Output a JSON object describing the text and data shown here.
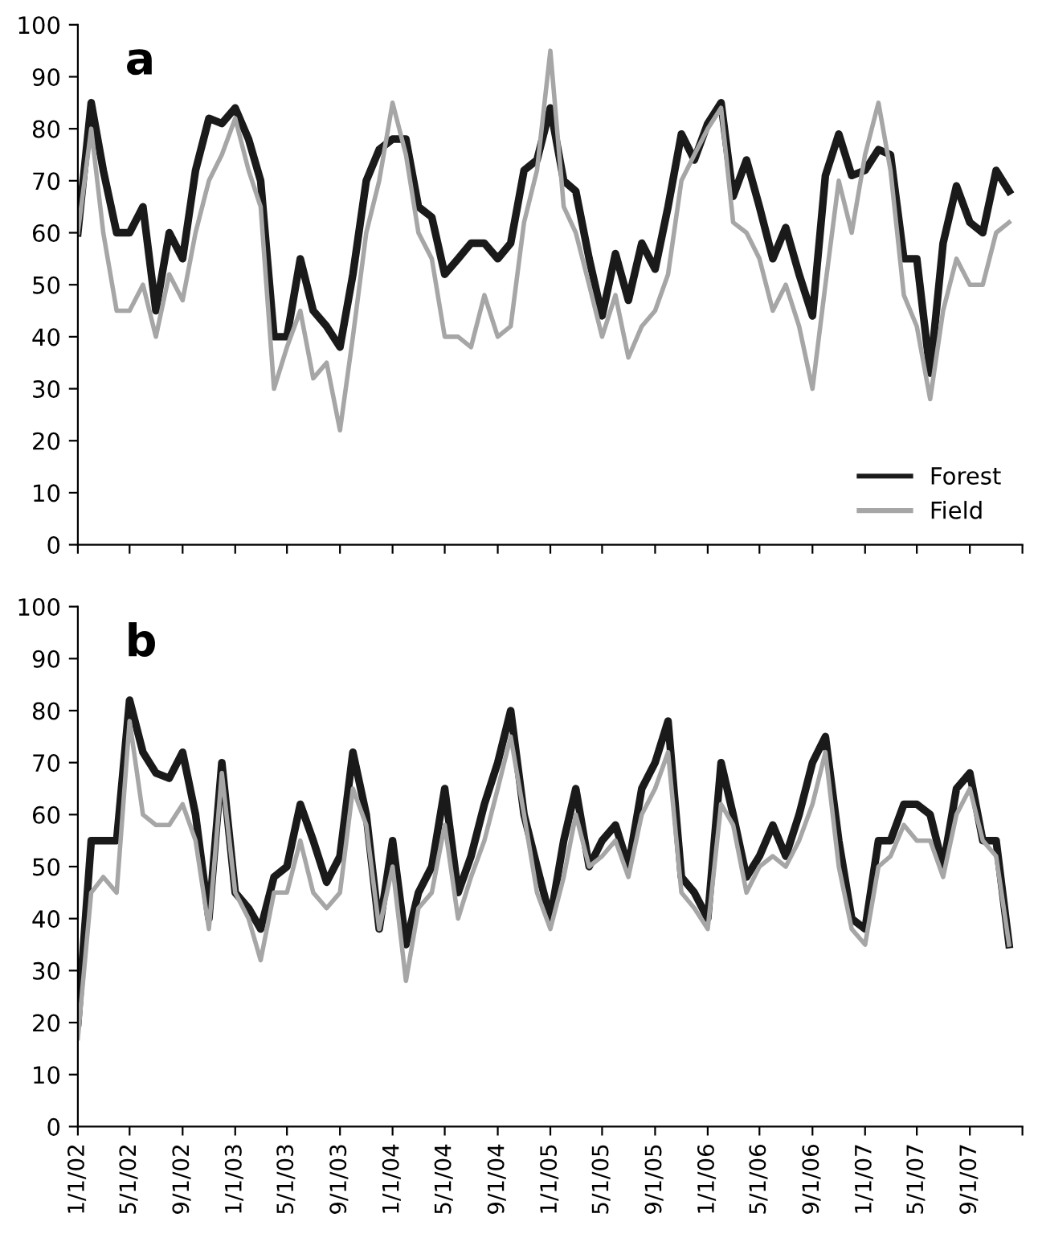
{
  "chart_data": [
    {
      "type": "line",
      "title": "a",
      "tick_labels": "y",
      "legend": "bottom right",
      "grid": false,
      "x": [
        "2002-01",
        "2002-02",
        "2002-03",
        "2002-04",
        "2002-05",
        "2002-06",
        "2002-07",
        "2002-08",
        "2002-09",
        "2002-10",
        "2002-11",
        "2002-12",
        "2003-01",
        "2003-02",
        "2003-03",
        "2003-04",
        "2003-05",
        "2003-06",
        "2003-07",
        "2003-08",
        "2003-09",
        "2003-10",
        "2003-11",
        "2003-12",
        "2004-01",
        "2004-02",
        "2004-03",
        "2004-04",
        "2004-05",
        "2004-06",
        "2004-07",
        "2004-08",
        "2004-09",
        "2004-10",
        "2004-11",
        "2004-12",
        "2005-01",
        "2005-02",
        "2005-03",
        "2005-04",
        "2005-05",
        "2005-06",
        "2005-07",
        "2005-08",
        "2005-09",
        "2005-10",
        "2005-11",
        "2005-12",
        "2006-01",
        "2006-02",
        "2006-03",
        "2006-04",
        "2006-05",
        "2006-06",
        "2006-07",
        "2006-08",
        "2006-09",
        "2006-10",
        "2006-11",
        "2006-12",
        "2007-01",
        "2007-02",
        "2007-03",
        "2007-04",
        "2007-05",
        "2007-06",
        "2007-07",
        "2007-08",
        "2007-09",
        "2007-10",
        "2007-11",
        "2007-12"
      ],
      "xlim": [
        "2002-01-01",
        "2008-01-01"
      ],
      "ylim": [
        0,
        100
      ],
      "yticks": [
        0,
        10,
        20,
        30,
        40,
        50,
        60,
        70,
        80,
        90,
        100
      ],
      "xticks": [
        {
          "value": "2002-01-01",
          "label": null
        },
        {
          "value": "2002-05-01",
          "label": null
        },
        {
          "value": "2002-09-01",
          "label": null
        },
        {
          "value": "2003-01-01",
          "label": null
        },
        {
          "value": "2003-05-01",
          "label": null
        },
        {
          "value": "2003-09-01",
          "label": null
        },
        {
          "value": "2004-01-01",
          "label": null
        },
        {
          "value": "2004-05-01",
          "label": null
        },
        {
          "value": "2004-09-01",
          "label": null
        },
        {
          "value": "2005-01-01",
          "label": null
        },
        {
          "value": "2005-05-01",
          "label": null
        },
        {
          "value": "2005-09-01",
          "label": null
        },
        {
          "value": "2006-01-01",
          "label": null
        },
        {
          "value": "2006-05-01",
          "label": null
        },
        {
          "value": "2006-09-01",
          "label": null
        },
        {
          "value": "2007-01-01",
          "label": null
        },
        {
          "value": "2007-05-01",
          "label": null
        },
        {
          "value": "2007-09-01",
          "label": null
        },
        {
          "value": "2008-01-01",
          "label": null
        }
      ],
      "series": [
        {
          "name": "Forest",
          "color": "#1a1a1a",
          "values": [
            60,
            85,
            72,
            60,
            60,
            65,
            45,
            60,
            55,
            72,
            82,
            81,
            84,
            78,
            70,
            40,
            40,
            55,
            45,
            42,
            38,
            52,
            70,
            76,
            78,
            78,
            65,
            63,
            52,
            55,
            58,
            58,
            55,
            58,
            72,
            74,
            84,
            70,
            68,
            55,
            44,
            56,
            47,
            58,
            53,
            65,
            79,
            74,
            81,
            85,
            67,
            74,
            65,
            55,
            61,
            52,
            44,
            71,
            79,
            71,
            72,
            76,
            75,
            55,
            55,
            33,
            58,
            69,
            62,
            60,
            72,
            68
          ]
        },
        {
          "name": "Field",
          "color": "#a6a6a6",
          "values": [
            60,
            80,
            60,
            45,
            45,
            50,
            40,
            52,
            47,
            60,
            70,
            75,
            82,
            72,
            65,
            30,
            38,
            45,
            32,
            35,
            22,
            40,
            60,
            70,
            85,
            75,
            60,
            55,
            40,
            40,
            38,
            48,
            40,
            42,
            62,
            72,
            95,
            65,
            60,
            50,
            40,
            48,
            36,
            42,
            45,
            52,
            70,
            75,
            80,
            84,
            62,
            60,
            55,
            45,
            50,
            42,
            30,
            50,
            70,
            60,
            75,
            85,
            72,
            48,
            42,
            28,
            45,
            55,
            50,
            50,
            60,
            62
          ]
        }
      ]
    },
    {
      "type": "line",
      "title": "b",
      "grid": false,
      "x": [
        "2002-01",
        "2002-02",
        "2002-03",
        "2002-04",
        "2002-05",
        "2002-06",
        "2002-07",
        "2002-08",
        "2002-09",
        "2002-10",
        "2002-11",
        "2002-12",
        "2003-01",
        "2003-02",
        "2003-03",
        "2003-04",
        "2003-05",
        "2003-06",
        "2003-07",
        "2003-08",
        "2003-09",
        "2003-10",
        "2003-11",
        "2003-12",
        "2004-01",
        "2004-02",
        "2004-03",
        "2004-04",
        "2004-05",
        "2004-06",
        "2004-07",
        "2004-08",
        "2004-09",
        "2004-10",
        "2004-11",
        "2004-12",
        "2005-01",
        "2005-02",
        "2005-03",
        "2005-04",
        "2005-05",
        "2005-06",
        "2005-07",
        "2005-08",
        "2005-09",
        "2005-10",
        "2005-11",
        "2005-12",
        "2006-01",
        "2006-02",
        "2006-03",
        "2006-04",
        "2006-05",
        "2006-06",
        "2006-07",
        "2006-08",
        "2006-09",
        "2006-10",
        "2006-11",
        "2006-12",
        "2007-01",
        "2007-02",
        "2007-03",
        "2007-04",
        "2007-05",
        "2007-06",
        "2007-07",
        "2007-08",
        "2007-09",
        "2007-10",
        "2007-11",
        "2007-12"
      ],
      "xlim": [
        "2002-01-01",
        "2008-01-01"
      ],
      "ylim": [
        0,
        100
      ],
      "yticks": [
        0,
        10,
        20,
        30,
        40,
        50,
        60,
        70,
        80,
        90,
        100
      ],
      "xticks": [
        {
          "value": "2002-01-01",
          "label": "1/1/02"
        },
        {
          "value": "2002-05-01",
          "label": "5/1/02"
        },
        {
          "value": "2002-09-01",
          "label": "9/1/02"
        },
        {
          "value": "2003-01-01",
          "label": "1/1/03"
        },
        {
          "value": "2003-05-01",
          "label": "5/1/03"
        },
        {
          "value": "2003-09-01",
          "label": "9/1/03"
        },
        {
          "value": "2004-01-01",
          "label": "1/1/04"
        },
        {
          "value": "2004-05-01",
          "label": "5/1/04"
        },
        {
          "value": "2004-09-01",
          "label": "9/1/04"
        },
        {
          "value": "2005-01-01",
          "label": "1/1/05"
        },
        {
          "value": "2005-05-01",
          "label": "5/1/05"
        },
        {
          "value": "2005-09-01",
          "label": "9/1/05"
        },
        {
          "value": "2006-01-01",
          "label": "1/1/06"
        },
        {
          "value": "2006-05-01",
          "label": "5/1/06"
        },
        {
          "value": "2006-09-01",
          "label": "9/1/06"
        },
        {
          "value": "2007-01-01",
          "label": "1/1/07"
        },
        {
          "value": "2007-05-01",
          "label": "5/1/07"
        },
        {
          "value": "2007-09-01",
          "label": "9/1/07"
        },
        {
          "value": "2008-01-01",
          "label": null
        }
      ],
      "series": [
        {
          "color": "#1a1a1a",
          "values": [
            20,
            55,
            55,
            55,
            82,
            72,
            68,
            67,
            72,
            60,
            40,
            70,
            45,
            42,
            38,
            48,
            50,
            62,
            55,
            47,
            52,
            72,
            60,
            38,
            55,
            35,
            45,
            50,
            65,
            45,
            52,
            62,
            70,
            80,
            60,
            50,
            40,
            55,
            65,
            50,
            55,
            58,
            50,
            65,
            70,
            78,
            48,
            45,
            40,
            70,
            60,
            48,
            52,
            58,
            52,
            60,
            70,
            75,
            55,
            40,
            38,
            55,
            55,
            62,
            62,
            60,
            50,
            65,
            68,
            55,
            55,
            35
          ]
        },
        {
          "color": "#a6a6a6",
          "values": [
            17,
            45,
            48,
            45,
            78,
            60,
            58,
            58,
            62,
            55,
            38,
            68,
            45,
            40,
            32,
            45,
            45,
            55,
            45,
            42,
            45,
            65,
            58,
            38,
            50,
            28,
            42,
            45,
            58,
            40,
            48,
            55,
            65,
            75,
            60,
            45,
            38,
            48,
            60,
            50,
            52,
            55,
            48,
            60,
            65,
            72,
            45,
            42,
            38,
            62,
            58,
            45,
            50,
            52,
            50,
            55,
            62,
            72,
            50,
            38,
            35,
            50,
            52,
            58,
            55,
            55,
            48,
            60,
            65,
            55,
            52,
            35
          ]
        }
      ]
    }
  ]
}
